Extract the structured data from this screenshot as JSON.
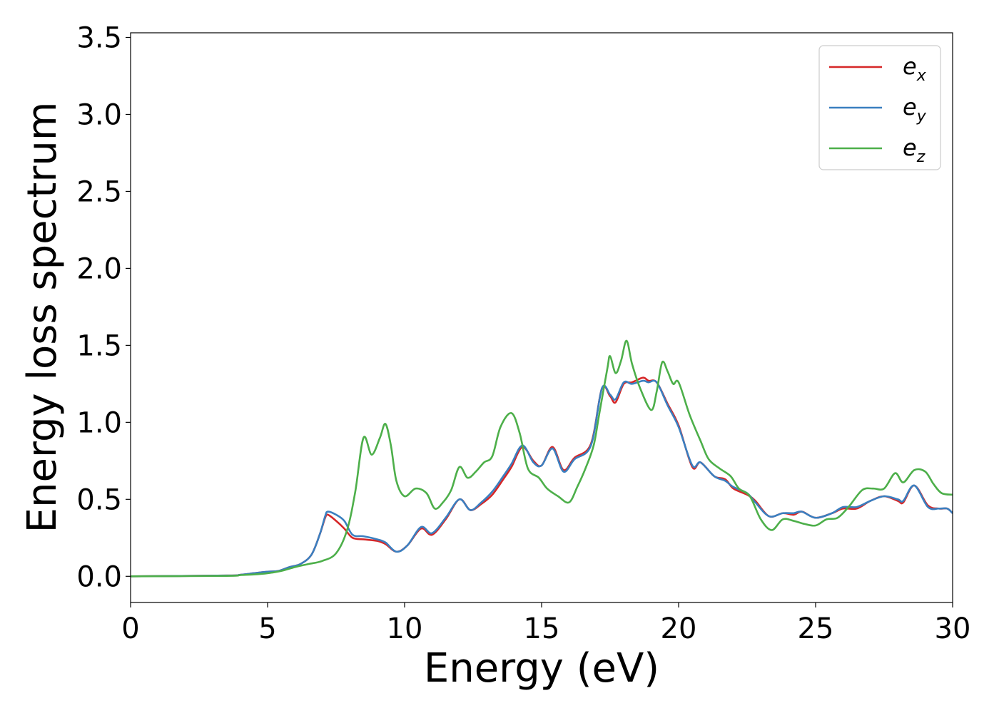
{
  "chart_data": {
    "type": "line",
    "xlabel": "Energy (eV)",
    "ylabel": "Energy loss spectrum",
    "xlim": [
      0,
      30
    ],
    "ylim": [
      -0.17,
      3.53
    ],
    "xticks": [
      0,
      5,
      10,
      15,
      20,
      25,
      30
    ],
    "yticks": [
      0.0,
      0.5,
      1.0,
      1.5,
      2.0,
      2.5,
      3.0,
      3.5
    ],
    "xtick_labels": [
      "0",
      "5",
      "10",
      "15",
      "20",
      "25",
      "30"
    ],
    "ytick_labels": [
      "0.0",
      "0.5",
      "1.0",
      "1.5",
      "2.0",
      "2.5",
      "3.0",
      "3.5"
    ],
    "grid": false,
    "legend_position": "top-right",
    "series": [
      {
        "name": "e",
        "subscript": "x",
        "color": "#d62728",
        "points": [
          [
            0,
            0
          ],
          [
            3.5,
            0.005
          ],
          [
            4,
            0.01
          ],
          [
            4.5,
            0.02
          ],
          [
            5,
            0.03
          ],
          [
            5.4,
            0.035
          ],
          [
            5.8,
            0.06
          ],
          [
            6.2,
            0.08
          ],
          [
            6.6,
            0.14
          ],
          [
            6.9,
            0.27
          ],
          [
            7.1,
            0.38
          ],
          [
            7.2,
            0.4
          ],
          [
            7.5,
            0.36
          ],
          [
            7.8,
            0.31
          ],
          [
            8.1,
            0.25
          ],
          [
            8.5,
            0.24
          ],
          [
            9,
            0.23
          ],
          [
            9.3,
            0.21
          ],
          [
            9.7,
            0.16
          ],
          [
            10.1,
            0.2
          ],
          [
            10.6,
            0.31
          ],
          [
            11,
            0.27
          ],
          [
            11.5,
            0.37
          ],
          [
            12,
            0.5
          ],
          [
            12.4,
            0.43
          ],
          [
            12.8,
            0.47
          ],
          [
            13.2,
            0.53
          ],
          [
            13.6,
            0.63
          ],
          [
            13.9,
            0.71
          ],
          [
            14.3,
            0.84
          ],
          [
            14.7,
            0.75
          ],
          [
            15,
            0.72
          ],
          [
            15.4,
            0.84
          ],
          [
            15.8,
            0.69
          ],
          [
            16.2,
            0.77
          ],
          [
            16.8,
            0.86
          ],
          [
            17.2,
            1.22
          ],
          [
            17.5,
            1.17
          ],
          [
            17.7,
            1.13
          ],
          [
            18,
            1.25
          ],
          [
            18.3,
            1.26
          ],
          [
            18.7,
            1.29
          ],
          [
            18.9,
            1.27
          ],
          [
            19.2,
            1.26
          ],
          [
            19.6,
            1.12
          ],
          [
            20,
            0.98
          ],
          [
            20.5,
            0.71
          ],
          [
            20.8,
            0.74
          ],
          [
            21.3,
            0.65
          ],
          [
            21.7,
            0.63
          ],
          [
            22,
            0.57
          ],
          [
            22.5,
            0.53
          ],
          [
            22.8,
            0.49
          ],
          [
            23.3,
            0.39
          ],
          [
            23.8,
            0.41
          ],
          [
            24.2,
            0.4
          ],
          [
            24.5,
            0.42
          ],
          [
            25,
            0.38
          ],
          [
            25.6,
            0.41
          ],
          [
            26,
            0.44
          ],
          [
            26.5,
            0.44
          ],
          [
            27,
            0.49
          ],
          [
            27.5,
            0.52
          ],
          [
            28,
            0.49
          ],
          [
            28.2,
            0.48
          ],
          [
            28.6,
            0.59
          ],
          [
            29.1,
            0.46
          ],
          [
            29.5,
            0.44
          ],
          [
            29.8,
            0.44
          ],
          [
            30,
            0.41
          ]
        ]
      },
      {
        "name": "e",
        "subscript": "y",
        "color": "#3a7fc0",
        "points": [
          [
            0,
            0
          ],
          [
            3.5,
            0.005
          ],
          [
            4,
            0.01
          ],
          [
            4.5,
            0.02
          ],
          [
            5,
            0.03
          ],
          [
            5.4,
            0.035
          ],
          [
            5.8,
            0.06
          ],
          [
            6.2,
            0.08
          ],
          [
            6.6,
            0.14
          ],
          [
            6.9,
            0.27
          ],
          [
            7.1,
            0.39
          ],
          [
            7.2,
            0.42
          ],
          [
            7.5,
            0.4
          ],
          [
            7.8,
            0.36
          ],
          [
            8.1,
            0.27
          ],
          [
            8.5,
            0.26
          ],
          [
            9,
            0.24
          ],
          [
            9.3,
            0.22
          ],
          [
            9.7,
            0.16
          ],
          [
            10.1,
            0.2
          ],
          [
            10.6,
            0.32
          ],
          [
            11,
            0.28
          ],
          [
            11.5,
            0.38
          ],
          [
            12,
            0.5
          ],
          [
            12.4,
            0.43
          ],
          [
            12.8,
            0.48
          ],
          [
            13.2,
            0.55
          ],
          [
            13.6,
            0.65
          ],
          [
            13.9,
            0.73
          ],
          [
            14.3,
            0.85
          ],
          [
            14.7,
            0.74
          ],
          [
            15,
            0.72
          ],
          [
            15.4,
            0.83
          ],
          [
            15.8,
            0.68
          ],
          [
            16.2,
            0.76
          ],
          [
            16.8,
            0.85
          ],
          [
            17.2,
            1.22
          ],
          [
            17.5,
            1.18
          ],
          [
            17.7,
            1.15
          ],
          [
            18,
            1.26
          ],
          [
            18.3,
            1.25
          ],
          [
            18.7,
            1.27
          ],
          [
            18.9,
            1.26
          ],
          [
            19.2,
            1.26
          ],
          [
            19.6,
            1.11
          ],
          [
            20,
            0.97
          ],
          [
            20.5,
            0.72
          ],
          [
            20.8,
            0.74
          ],
          [
            21.3,
            0.65
          ],
          [
            21.7,
            0.62
          ],
          [
            22,
            0.58
          ],
          [
            22.5,
            0.54
          ],
          [
            22.8,
            0.48
          ],
          [
            23.3,
            0.39
          ],
          [
            23.8,
            0.41
          ],
          [
            24.2,
            0.41
          ],
          [
            24.5,
            0.42
          ],
          [
            25,
            0.38
          ],
          [
            25.6,
            0.41
          ],
          [
            26,
            0.45
          ],
          [
            26.5,
            0.45
          ],
          [
            27,
            0.49
          ],
          [
            27.5,
            0.52
          ],
          [
            28,
            0.5
          ],
          [
            28.2,
            0.49
          ],
          [
            28.6,
            0.59
          ],
          [
            29.1,
            0.45
          ],
          [
            29.5,
            0.44
          ],
          [
            29.8,
            0.44
          ],
          [
            30,
            0.41
          ]
        ]
      },
      {
        "name": "e",
        "subscript": "z",
        "color": "#4daf4a",
        "points": [
          [
            0,
            0
          ],
          [
            3.5,
            0.003
          ],
          [
            4,
            0.008
          ],
          [
            4.5,
            0.012
          ],
          [
            5,
            0.02
          ],
          [
            5.5,
            0.035
          ],
          [
            6,
            0.06
          ],
          [
            6.5,
            0.08
          ],
          [
            7,
            0.1
          ],
          [
            7.5,
            0.15
          ],
          [
            7.9,
            0.3
          ],
          [
            8.2,
            0.55
          ],
          [
            8.5,
            0.9
          ],
          [
            8.8,
            0.79
          ],
          [
            9.1,
            0.9
          ],
          [
            9.3,
            0.99
          ],
          [
            9.5,
            0.85
          ],
          [
            9.7,
            0.62
          ],
          [
            10,
            0.52
          ],
          [
            10.4,
            0.57
          ],
          [
            10.8,
            0.54
          ],
          [
            11.1,
            0.44
          ],
          [
            11.4,
            0.48
          ],
          [
            11.7,
            0.56
          ],
          [
            12,
            0.71
          ],
          [
            12.3,
            0.64
          ],
          [
            12.6,
            0.68
          ],
          [
            12.9,
            0.74
          ],
          [
            13.2,
            0.78
          ],
          [
            13.5,
            0.97
          ],
          [
            13.9,
            1.06
          ],
          [
            14.2,
            0.93
          ],
          [
            14.5,
            0.7
          ],
          [
            14.9,
            0.64
          ],
          [
            15.2,
            0.57
          ],
          [
            15.6,
            0.52
          ],
          [
            16,
            0.48
          ],
          [
            16.3,
            0.58
          ],
          [
            16.6,
            0.7
          ],
          [
            16.9,
            0.85
          ],
          [
            17.1,
            1.05
          ],
          [
            17.4,
            1.35
          ],
          [
            17.5,
            1.43
          ],
          [
            17.7,
            1.32
          ],
          [
            17.9,
            1.4
          ],
          [
            18.1,
            1.53
          ],
          [
            18.3,
            1.38
          ],
          [
            18.6,
            1.22
          ],
          [
            19,
            1.08
          ],
          [
            19.2,
            1.2
          ],
          [
            19.4,
            1.39
          ],
          [
            19.6,
            1.33
          ],
          [
            19.8,
            1.25
          ],
          [
            20,
            1.26
          ],
          [
            20.4,
            1.05
          ],
          [
            20.8,
            0.88
          ],
          [
            21.1,
            0.76
          ],
          [
            21.5,
            0.7
          ],
          [
            21.9,
            0.65
          ],
          [
            22.2,
            0.57
          ],
          [
            22.6,
            0.52
          ],
          [
            23,
            0.37
          ],
          [
            23.4,
            0.3
          ],
          [
            23.8,
            0.37
          ],
          [
            24.2,
            0.36
          ],
          [
            24.6,
            0.34
          ],
          [
            25,
            0.33
          ],
          [
            25.4,
            0.37
          ],
          [
            25.8,
            0.38
          ],
          [
            26.2,
            0.45
          ],
          [
            26.7,
            0.56
          ],
          [
            27.1,
            0.57
          ],
          [
            27.5,
            0.57
          ],
          [
            27.9,
            0.67
          ],
          [
            28.2,
            0.61
          ],
          [
            28.6,
            0.69
          ],
          [
            29,
            0.68
          ],
          [
            29.3,
            0.6
          ],
          [
            29.6,
            0.54
          ],
          [
            30,
            0.53
          ]
        ]
      }
    ]
  }
}
